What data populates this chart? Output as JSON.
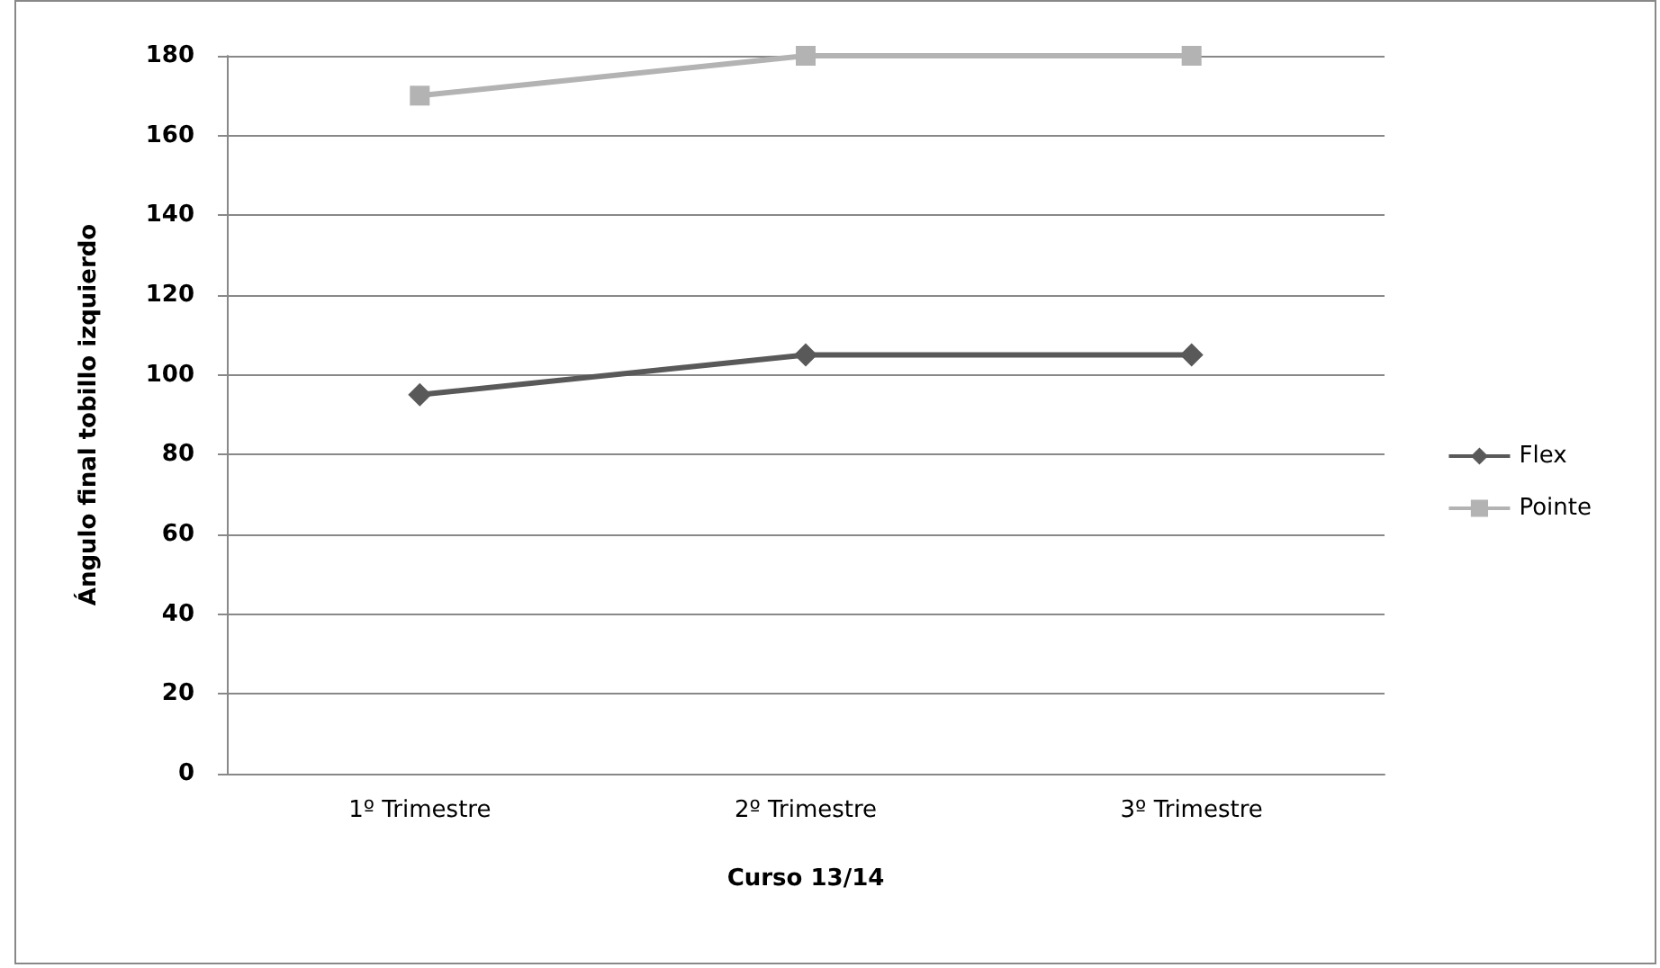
{
  "chart_data": {
    "type": "line",
    "xlabel": "Curso 13/14",
    "ylabel": "Ángulo final tobillo izquierdo",
    "categories": [
      "1º Trimestre",
      "2º Trimestre",
      "3º Trimestre"
    ],
    "series": [
      {
        "name": "Flex",
        "color": "#595959",
        "marker": "diamond",
        "values": [
          95,
          105,
          105
        ]
      },
      {
        "name": "Pointe",
        "color": "#b3b3b3",
        "marker": "square",
        "values": [
          170,
          180,
          180
        ]
      }
    ],
    "ylim": [
      0,
      180
    ],
    "yticks": [
      0,
      20,
      40,
      60,
      80,
      100,
      120,
      140,
      160,
      180
    ],
    "grid": "y",
    "legend": "right"
  }
}
